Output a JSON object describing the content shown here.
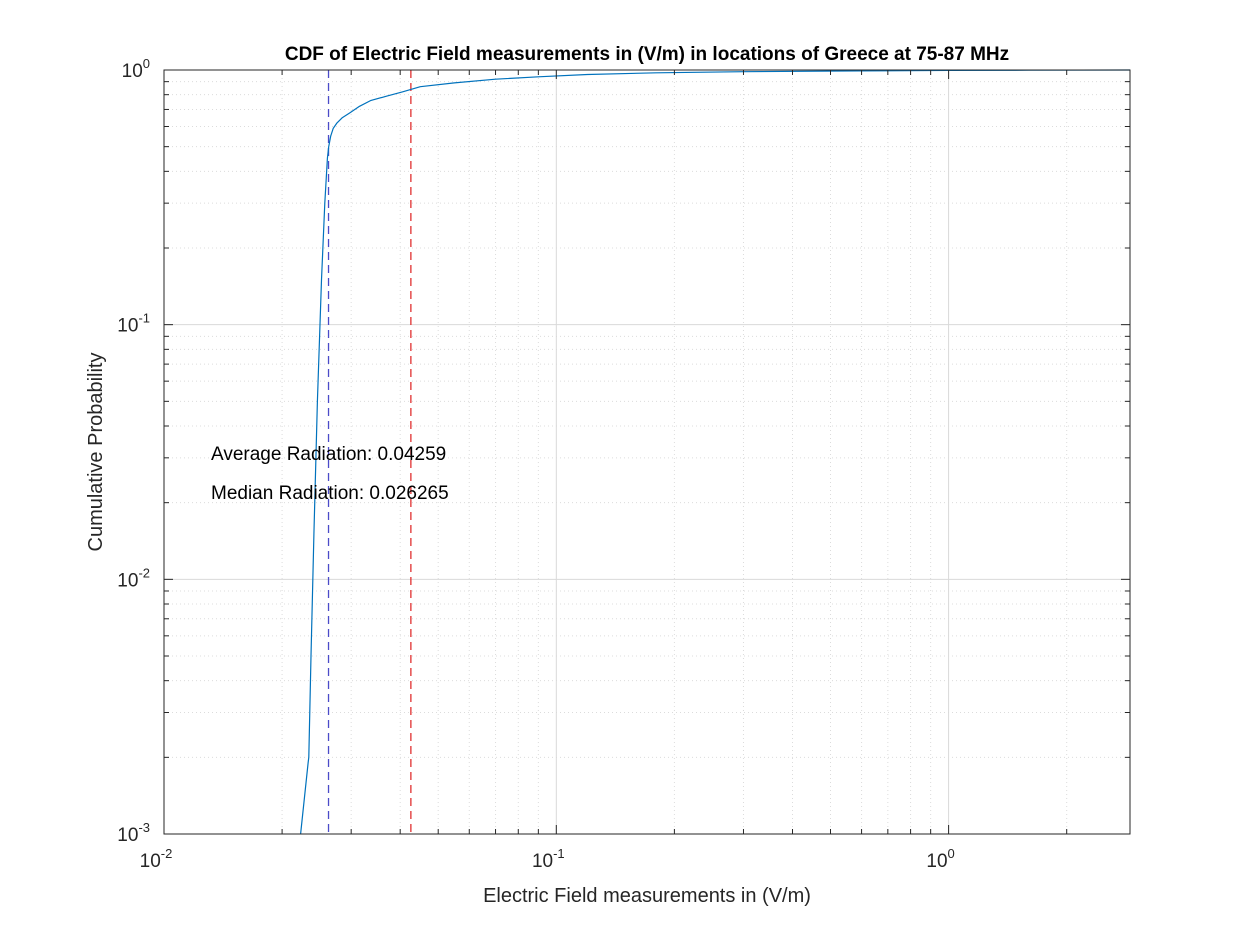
{
  "chart_data": {
    "type": "line",
    "title": "CDF of Electric Field measurements in (V/m) in locations of Greece at 75-87 MHz",
    "xlabel": "Electric Field measurements in (V/m)",
    "ylabel": "Cumulative Probability",
    "xscale": "log",
    "yscale": "log",
    "xlim": [
      0.01,
      2.9
    ],
    "ylim": [
      0.001,
      1
    ],
    "grid": true,
    "minor_grid": true,
    "x_ticks": [
      {
        "base": "10",
        "exp": "-2",
        "value": 0.01
      },
      {
        "base": "10",
        "exp": "-1",
        "value": 0.1
      },
      {
        "base": "10",
        "exp": "0",
        "value": 1
      }
    ],
    "y_ticks": [
      {
        "base": "10",
        "exp": "-3",
        "value": 0.001
      },
      {
        "base": "10",
        "exp": "-2",
        "value": 0.01
      },
      {
        "base": "10",
        "exp": "-1",
        "value": 0.1
      },
      {
        "base": "10",
        "exp": "0",
        "value": 1
      }
    ],
    "series": [
      {
        "color": "#0072BD",
        "x": [
          0.0223,
          0.0233,
          0.0234,
          0.0237,
          0.0241,
          0.0246,
          0.0252,
          0.0257,
          0.0261,
          0.0263,
          0.0266,
          0.027,
          0.0276,
          0.0285,
          0.0298,
          0.0315,
          0.0337,
          0.037,
          0.0405,
          0.045,
          0.055,
          0.07,
          0.09,
          0.12,
          0.18,
          0.3,
          0.6,
          1.0,
          1.6,
          2.9
        ],
        "y": [
          0.001,
          0.0019,
          0.002,
          0.005,
          0.015,
          0.05,
          0.15,
          0.3,
          0.45,
          0.5,
          0.55,
          0.59,
          0.62,
          0.65,
          0.68,
          0.72,
          0.76,
          0.79,
          0.82,
          0.86,
          0.89,
          0.92,
          0.94,
          0.96,
          0.975,
          0.985,
          0.992,
          0.996,
          0.998,
          1.0
        ]
      }
    ],
    "reference_lines": [
      {
        "x": 0.026265,
        "color": "#4B4BC8",
        "style": "dashed"
      },
      {
        "x": 0.04259,
        "color": "#E03030",
        "style": "dashed"
      }
    ],
    "annotations": [
      {
        "text": "Average Radiation: 0.04259"
      },
      {
        "text": "Median Radiation: 0.026265"
      }
    ]
  }
}
